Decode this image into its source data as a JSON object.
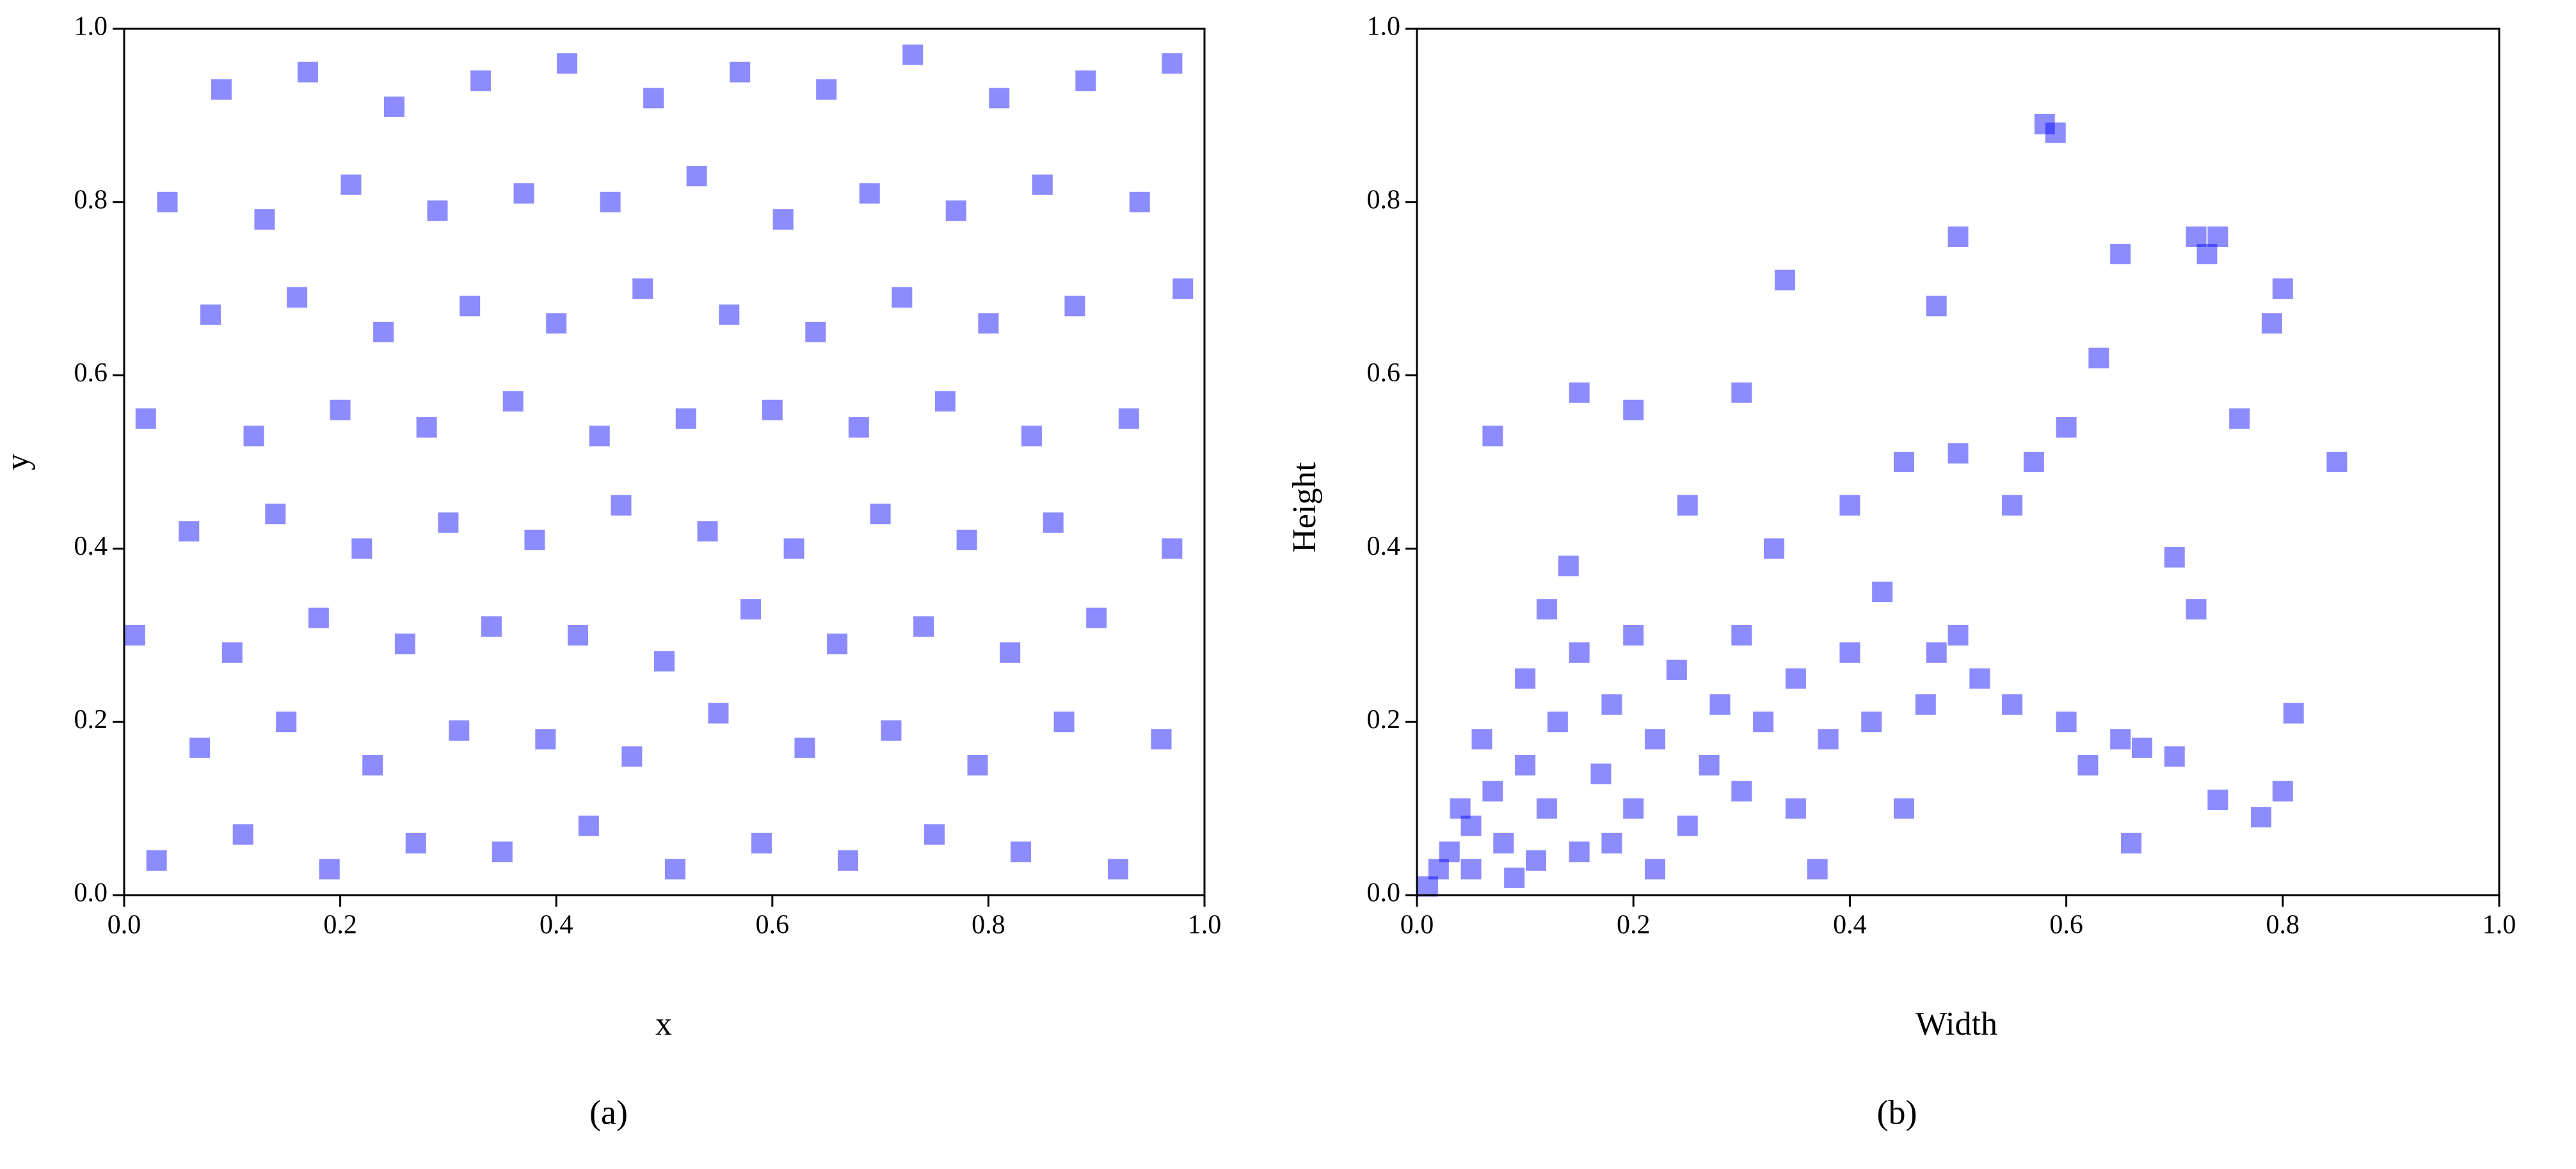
{
  "chart_data": [
    {
      "type": "scatter",
      "xlabel": "x",
      "ylabel": "y",
      "caption": "(a)",
      "xlim": [
        0,
        1
      ],
      "ylim": [
        0,
        1
      ],
      "xticks": [
        {
          "value": 0,
          "label": "0.0"
        },
        {
          "value": 0.2,
          "label": "0.2"
        },
        {
          "value": 0.4,
          "label": "0.4"
        },
        {
          "value": 0.6,
          "label": "0.6"
        },
        {
          "value": 0.8,
          "label": "0.8"
        },
        {
          "value": 1,
          "label": "1.0"
        }
      ],
      "yticks": [
        {
          "value": 0,
          "label": "0.0"
        },
        {
          "value": 0.2,
          "label": "0.2"
        },
        {
          "value": 0.4,
          "label": "0.4"
        },
        {
          "value": 0.6,
          "label": "0.6"
        },
        {
          "value": 0.8,
          "label": "0.8"
        },
        {
          "value": 1,
          "label": "1.0"
        }
      ],
      "series": [
        {
          "color": "#0000ff",
          "opacity": 0.45,
          "x": [
            0.03,
            0.11,
            0.19,
            0.27,
            0.35,
            0.43,
            0.51,
            0.59,
            0.67,
            0.75,
            0.83,
            0.92,
            0.07,
            0.15,
            0.23,
            0.31,
            0.39,
            0.47,
            0.55,
            0.63,
            0.71,
            0.79,
            0.87,
            0.96,
            0.01,
            0.1,
            0.18,
            0.26,
            0.34,
            0.42,
            0.5,
            0.58,
            0.66,
            0.74,
            0.82,
            0.9,
            0.06,
            0.14,
            0.22,
            0.3,
            0.38,
            0.46,
            0.54,
            0.62,
            0.7,
            0.78,
            0.86,
            0.97,
            0.02,
            0.12,
            0.2,
            0.28,
            0.36,
            0.44,
            0.52,
            0.6,
            0.68,
            0.76,
            0.84,
            0.93,
            0.08,
            0.16,
            0.24,
            0.32,
            0.4,
            0.48,
            0.56,
            0.64,
            0.72,
            0.8,
            0.88,
            0.98,
            0.04,
            0.13,
            0.21,
            0.29,
            0.37,
            0.45,
            0.53,
            0.61,
            0.69,
            0.77,
            0.85,
            0.94,
            0.09,
            0.17,
            0.25,
            0.33,
            0.41,
            0.49,
            0.57,
            0.65,
            0.73,
            0.81,
            0.89,
            0.97
          ],
          "y": [
            0.04,
            0.07,
            0.03,
            0.06,
            0.05,
            0.08,
            0.03,
            0.06,
            0.04,
            0.07,
            0.05,
            0.03,
            0.17,
            0.2,
            0.15,
            0.19,
            0.18,
            0.16,
            0.21,
            0.17,
            0.19,
            0.15,
            0.2,
            0.18,
            0.3,
            0.28,
            0.32,
            0.29,
            0.31,
            0.3,
            0.27,
            0.33,
            0.29,
            0.31,
            0.28,
            0.32,
            0.42,
            0.44,
            0.4,
            0.43,
            0.41,
            0.45,
            0.42,
            0.4,
            0.44,
            0.41,
            0.43,
            0.4,
            0.55,
            0.53,
            0.56,
            0.54,
            0.57,
            0.53,
            0.55,
            0.56,
            0.54,
            0.57,
            0.53,
            0.55,
            0.67,
            0.69,
            0.65,
            0.68,
            0.66,
            0.7,
            0.67,
            0.65,
            0.69,
            0.66,
            0.68,
            0.7,
            0.8,
            0.78,
            0.82,
            0.79,
            0.81,
            0.8,
            0.83,
            0.78,
            0.81,
            0.79,
            0.82,
            0.8,
            0.93,
            0.95,
            0.91,
            0.94,
            0.96,
            0.92,
            0.95,
            0.93,
            0.97,
            0.92,
            0.94,
            0.96
          ]
        }
      ]
    },
    {
      "type": "scatter",
      "xlabel": "Width",
      "ylabel": "Height",
      "caption": "(b)",
      "xlim": [
        0,
        1
      ],
      "ylim": [
        0,
        1
      ],
      "xticks": [
        {
          "value": 0,
          "label": "0.0"
        },
        {
          "value": 0.2,
          "label": "0.2"
        },
        {
          "value": 0.4,
          "label": "0.4"
        },
        {
          "value": 0.6,
          "label": "0.6"
        },
        {
          "value": 0.8,
          "label": "0.8"
        },
        {
          "value": 1,
          "label": "1.0"
        }
      ],
      "yticks": [
        {
          "value": 0,
          "label": "0.0"
        },
        {
          "value": 0.2,
          "label": "0.2"
        },
        {
          "value": 0.4,
          "label": "0.4"
        },
        {
          "value": 0.6,
          "label": "0.6"
        },
        {
          "value": 0.8,
          "label": "0.8"
        },
        {
          "value": 1,
          "label": "1.0"
        }
      ],
      "series": [
        {
          "color": "#0000ff",
          "opacity": 0.45,
          "x": [
            0.01,
            0.02,
            0.03,
            0.05,
            0.05,
            0.07,
            0.08,
            0.1,
            0.1,
            0.12,
            0.13,
            0.15,
            0.15,
            0.17,
            0.18,
            0.2,
            0.2,
            0.22,
            0.24,
            0.25,
            0.27,
            0.28,
            0.3,
            0.3,
            0.32,
            0.33,
            0.35,
            0.35,
            0.37,
            0.38,
            0.4,
            0.4,
            0.42,
            0.43,
            0.45,
            0.45,
            0.47,
            0.48,
            0.5,
            0.5,
            0.52,
            0.55,
            0.55,
            0.57,
            0.58,
            0.59,
            0.6,
            0.6,
            0.62,
            0.63,
            0.65,
            0.65,
            0.66,
            0.67,
            0.7,
            0.7,
            0.72,
            0.72,
            0.73,
            0.74,
            0.74,
            0.76,
            0.78,
            0.79,
            0.8,
            0.8,
            0.81,
            0.85,
            0.07,
            0.15,
            0.2,
            0.34,
            0.5,
            0.48,
            0.3,
            0.25,
            0.14,
            0.12,
            0.06,
            0.04,
            0.09,
            0.11,
            0.18,
            0.22
          ],
          "y": [
            0.01,
            0.03,
            0.05,
            0.08,
            0.03,
            0.12,
            0.06,
            0.15,
            0.25,
            0.1,
            0.2,
            0.28,
            0.05,
            0.14,
            0.22,
            0.1,
            0.3,
            0.18,
            0.26,
            0.08,
            0.15,
            0.22,
            0.3,
            0.12,
            0.2,
            0.4,
            0.25,
            0.1,
            0.03,
            0.18,
            0.45,
            0.28,
            0.2,
            0.35,
            0.1,
            0.5,
            0.22,
            0.28,
            0.3,
            0.51,
            0.25,
            0.22,
            0.45,
            0.5,
            0.89,
            0.88,
            0.2,
            0.54,
            0.15,
            0.62,
            0.18,
            0.74,
            0.06,
            0.17,
            0.16,
            0.39,
            0.33,
            0.76,
            0.74,
            0.76,
            0.11,
            0.55,
            0.09,
            0.66,
            0.7,
            0.12,
            0.21,
            0.5,
            0.53,
            0.58,
            0.56,
            0.71,
            0.76,
            0.68,
            0.58,
            0.45,
            0.38,
            0.33,
            0.18,
            0.1,
            0.02,
            0.04,
            0.06,
            0.03
          ]
        }
      ]
    }
  ]
}
